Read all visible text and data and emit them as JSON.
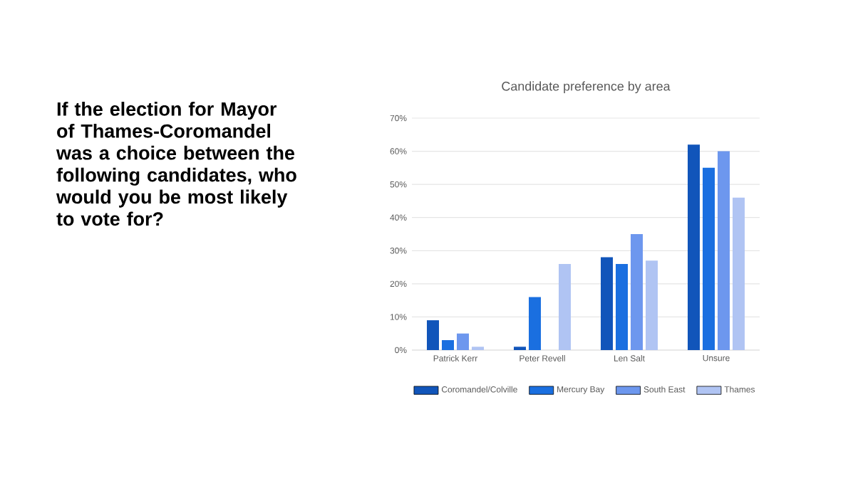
{
  "chart_data": {
    "type": "bar",
    "title": "Candidate preference by area",
    "annotations": [
      "If the election for Mayor of Thames-Coromandel was a choice between the following candidates, who would you be most likely to vote for?"
    ],
    "categories": [
      "Patrick Kerr",
      "Peter Revell",
      "Len Salt",
      "Unsure"
    ],
    "series": [
      {
        "name": "Coromandel/Colville",
        "color": "#1155ba",
        "values": [
          9,
          1,
          28,
          62
        ]
      },
      {
        "name": "Mercury Bay",
        "color": "#1a6fe0",
        "values": [
          3,
          16,
          26,
          55
        ]
      },
      {
        "name": "South East",
        "color": "#6d97ee",
        "values": [
          5,
          0,
          35,
          60
        ]
      },
      {
        "name": "Thames",
        "color": "#b0c4f3",
        "values": [
          1,
          26,
          27,
          46
        ]
      }
    ],
    "ylim": [
      0,
      70
    ],
    "yticks": [
      {
        "value": 0,
        "label": "0%"
      },
      {
        "value": 10,
        "label": "10%"
      },
      {
        "value": 20,
        "label": "20%"
      },
      {
        "value": 30,
        "label": "30%"
      },
      {
        "value": 40,
        "label": "40%"
      },
      {
        "value": 50,
        "label": "50%"
      },
      {
        "value": 60,
        "label": "60%"
      },
      {
        "value": 70,
        "label": "70%"
      }
    ],
    "grid": "y",
    "legend": "bottom"
  }
}
